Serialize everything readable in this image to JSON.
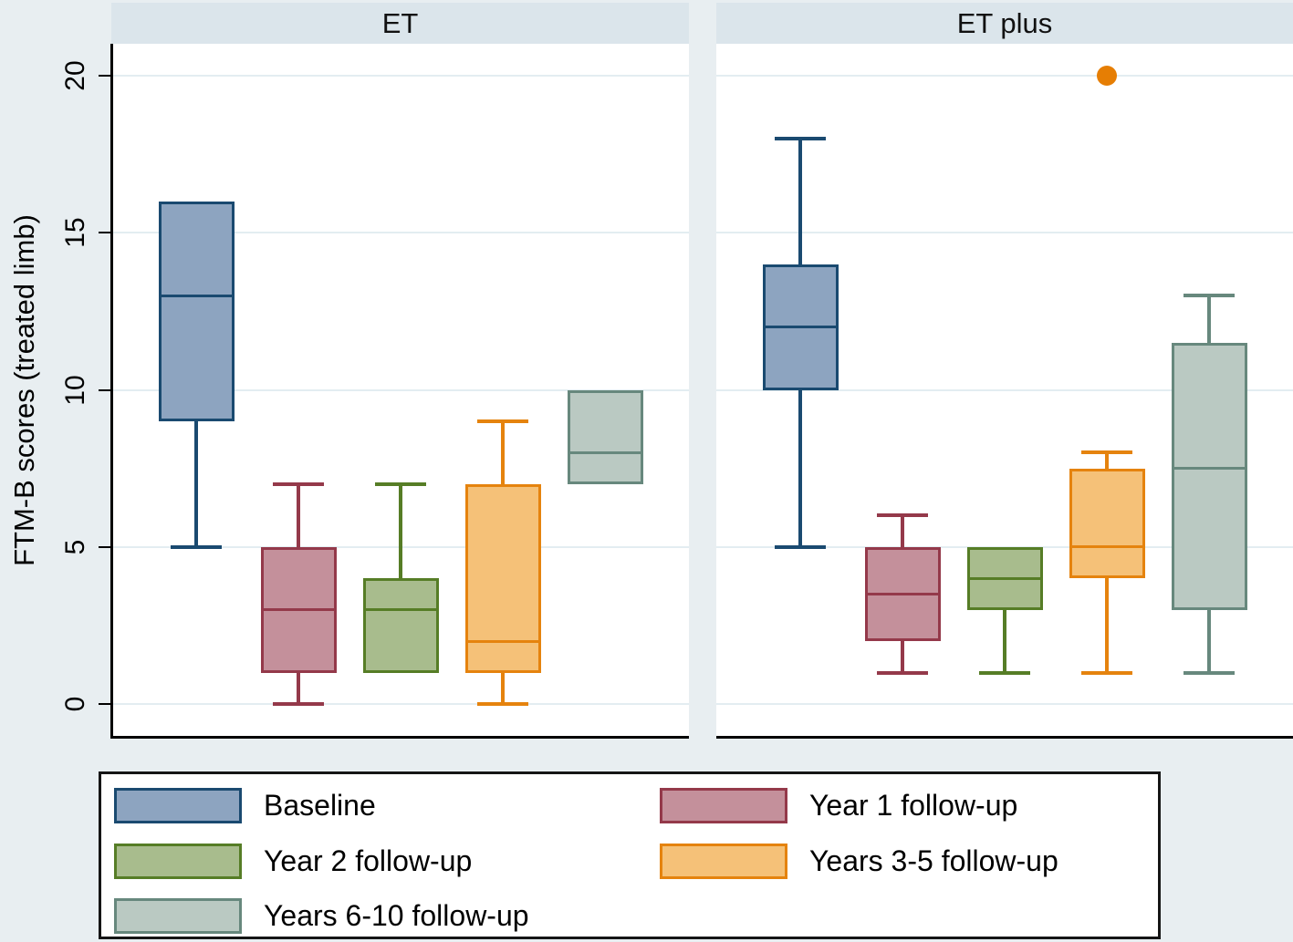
{
  "figure": {
    "background": "#e8eef1",
    "plot_background": "#ffffff",
    "header_background": "#dbe5eb",
    "gridline_color": "#e3edf1",
    "axis_color": "#000000",
    "outlier_color": "#e67e04"
  },
  "chart_data": {
    "type": "boxplot",
    "ylabel": "FTM-B scores (treated limb)",
    "yticks": [
      0,
      5,
      10,
      15,
      20
    ],
    "ylim": [
      -1,
      21
    ],
    "grid": true,
    "legend_position": "bottom",
    "panels": [
      {
        "label": "ET",
        "boxes": [
          {
            "series": "Baseline",
            "whisker_low": 5,
            "q1": 9,
            "median": 13,
            "q3": 16,
            "whisker_high": null,
            "outliers": []
          },
          {
            "series": "Year 1 follow-up",
            "whisker_low": 0,
            "q1": 1,
            "median": 3,
            "q3": 5,
            "whisker_high": 7,
            "outliers": []
          },
          {
            "series": "Year 2 follow-up",
            "whisker_low": null,
            "q1": 1,
            "median": 3,
            "q3": 4,
            "whisker_high": 7,
            "outliers": []
          },
          {
            "series": "Years 3-5 follow-up",
            "whisker_low": 0,
            "q1": 1,
            "median": 2,
            "q3": 7,
            "whisker_high": 9,
            "outliers": []
          },
          {
            "series": "Years 6-10 follow-up",
            "whisker_low": null,
            "q1": 7,
            "median": 8,
            "q3": 10,
            "whisker_high": null,
            "outliers": []
          }
        ]
      },
      {
        "label": "ET plus",
        "boxes": [
          {
            "series": "Baseline",
            "whisker_low": 5,
            "q1": 10,
            "median": 12,
            "q3": 14,
            "whisker_high": 18,
            "outliers": []
          },
          {
            "series": "Year 1 follow-up",
            "whisker_low": 1,
            "q1": 2,
            "median": 3.5,
            "q3": 5,
            "whisker_high": 6,
            "outliers": []
          },
          {
            "series": "Year 2 follow-up",
            "whisker_low": 1,
            "q1": 3,
            "median": 4,
            "q3": 5,
            "whisker_high": null,
            "outliers": []
          },
          {
            "series": "Years 3-5 follow-up",
            "whisker_low": 1,
            "q1": 4,
            "median": 5,
            "q3": 7.5,
            "whisker_high": 8,
            "outliers": [
              20
            ]
          },
          {
            "series": "Years 6-10 follow-up",
            "whisker_low": 1,
            "q1": 3,
            "median": 7.5,
            "q3": 11.5,
            "whisker_high": 13,
            "outliers": []
          }
        ]
      }
    ],
    "series_styles": [
      {
        "name": "Baseline",
        "fill": "#8da4c0",
        "stroke": "#1a4a70"
      },
      {
        "name": "Year 1 follow-up",
        "fill": "#c4909b",
        "stroke": "#94394a"
      },
      {
        "name": "Year 2 follow-up",
        "fill": "#a8bc8d",
        "stroke": "#567d26"
      },
      {
        "name": "Years 3-5 follow-up",
        "fill": "#f5c178",
        "stroke": "#e5830e"
      },
      {
        "name": "Years 6-10 follow-up",
        "fill": "#bac9c2",
        "stroke": "#67887d"
      }
    ],
    "legend": {
      "items": [
        "Baseline",
        "Year 1 follow-up",
        "Year 2 follow-up",
        "Years 3-5 follow-up",
        "Years 6-10 follow-up"
      ]
    }
  }
}
